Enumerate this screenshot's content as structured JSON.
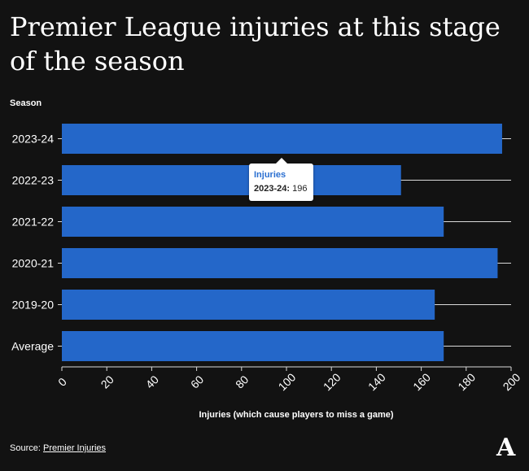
{
  "title": "Premier League injuries at this stage of the season",
  "chart_data": {
    "type": "bar",
    "orientation": "horizontal",
    "categories": [
      "2023-24",
      "2022-23",
      "2021-22",
      "2020-21",
      "2019-20",
      "Average"
    ],
    "series": [
      {
        "name": "Injuries",
        "values": [
          196,
          151,
          170,
          194,
          166,
          170
        ]
      }
    ],
    "xlabel": "Injuries (which cause players to miss a game)",
    "ylabel": "Season",
    "xlim": [
      0,
      200
    ],
    "xticks": [
      0,
      20,
      40,
      60,
      80,
      100,
      120,
      140,
      160,
      180,
      200
    ],
    "grid": true,
    "bar_color": "#2467c9"
  },
  "tooltip": {
    "series": "Injuries",
    "category": "2023-24:",
    "value": "196"
  },
  "source": {
    "label": "Source:",
    "link_text": "Premier Injuries"
  },
  "logo": {
    "text": "A"
  }
}
